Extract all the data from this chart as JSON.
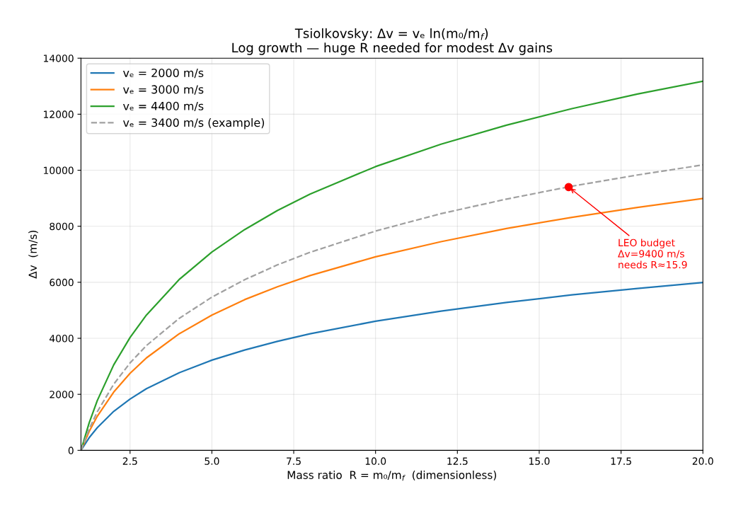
{
  "chart_data": {
    "type": "line",
    "title": "Tsiolkovsky: Δv = vₑ ln(m₀/m$_{f}$)",
    "subtitle": "Log growth — huge R needed for modest Δv gains",
    "xlabel": "Mass ratio  R = m₀/m$_{f}$  (dimensionless)",
    "ylabel": "Δv  (m/s)",
    "x": [
      1,
      1.25,
      1.5,
      2,
      2.5,
      3,
      4,
      5,
      6,
      7,
      8,
      10,
      12,
      14,
      16,
      18,
      20
    ],
    "series": [
      {
        "name": "vₑ = 2000 m/s",
        "color": "#1f77b4",
        "line_style": "solid",
        "values": [
          0,
          450,
          810,
          1390,
          1830,
          2200,
          2770,
          3220,
          3580,
          3890,
          4160,
          4610,
          4970,
          5280,
          5550,
          5780,
          5990
        ]
      },
      {
        "name": "vₑ = 3000 m/s",
        "color": "#ff7f0e",
        "line_style": "solid",
        "values": [
          0,
          670,
          1220,
          2080,
          2750,
          3300,
          4160,
          4830,
          5380,
          5840,
          6240,
          6910,
          7450,
          7920,
          8320,
          8670,
          8990
        ]
      },
      {
        "name": "vₑ = 4400 m/s",
        "color": "#2ca02c",
        "line_style": "solid",
        "values": [
          0,
          980,
          1780,
          3050,
          4030,
          4830,
          6100,
          7080,
          7880,
          8560,
          9150,
          10130,
          10930,
          11610,
          12200,
          12720,
          13180
        ]
      },
      {
        "name": "vₑ = 3400 m/s (example)",
        "color": "#a0a0a0",
        "line_style": "dashed",
        "values": [
          0,
          760,
          1380,
          2360,
          3120,
          3740,
          4710,
          5470,
          6090,
          6620,
          7070,
          7830,
          8450,
          8970,
          9430,
          9830,
          10190
        ]
      },
      {
        "type": "scatter",
        "color": "#ff0000",
        "marker": "circle",
        "x": [
          15.9
        ],
        "values": [
          9400
        ]
      }
    ],
    "annotations": [
      {
        "text": "LEO budget\nΔv=9400 m/s\nneeds R≈15.9",
        "x": 15.9,
        "y": 9400
      }
    ],
    "xlim": [
      1,
      20
    ],
    "xticks": [
      2.5,
      {
        "value": 5,
        "label": "5.0"
      },
      7.5,
      {
        "value": 10,
        "label": "10.0"
      },
      12.5,
      {
        "value": 15,
        "label": "15.0"
      },
      17.5,
      {
        "value": 20,
        "label": "20.0"
      }
    ],
    "ylim": [
      0,
      14000
    ],
    "yticks": [
      0,
      2000,
      4000,
      6000,
      8000,
      10000,
      12000,
      14000
    ],
    "grid": true,
    "legend": "top left",
    "marker": "none"
  }
}
